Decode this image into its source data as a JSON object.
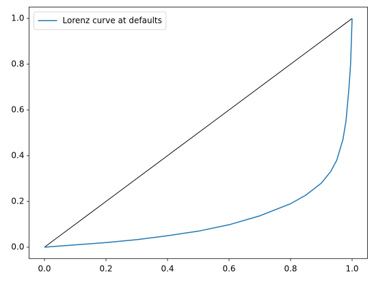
{
  "chart_data": {
    "type": "line",
    "x": [
      0,
      0.1,
      0.2,
      0.3,
      0.4,
      0.5,
      0.6,
      0.7,
      0.8,
      0.85,
      0.9,
      0.93,
      0.95,
      0.97,
      0.98,
      0.99,
      0.995,
      1.0
    ],
    "series": [
      {
        "name": "Lorenz curve at defaults",
        "color": "#1f77b4",
        "values": [
          0,
          0.01,
          0.02,
          0.033,
          0.05,
          0.07,
          0.098,
          0.137,
          0.19,
          0.228,
          0.28,
          0.33,
          0.38,
          0.47,
          0.55,
          0.7,
          0.8,
          1.0
        ]
      },
      {
        "color": "#000000",
        "values": [
          0,
          0.1,
          0.2,
          0.3,
          0.4,
          0.5,
          0.6,
          0.7,
          0.8,
          0.85,
          0.9,
          0.93,
          0.95,
          0.97,
          0.98,
          0.99,
          0.995,
          1.0
        ]
      }
    ],
    "xlim": [
      -0.05,
      1.05
    ],
    "ylim": [
      -0.05,
      1.05
    ],
    "xticks": [
      {
        "value": 0,
        "label": "0.0"
      },
      0.2,
      0.4,
      0.6,
      0.8,
      {
        "value": 1,
        "label": "1.0"
      }
    ],
    "yticks": [
      {
        "value": 0,
        "label": "0.0"
      },
      0.2,
      0.4,
      0.6,
      0.8,
      {
        "value": 1,
        "label": "1.0"
      }
    ],
    "legend": "upper left"
  }
}
